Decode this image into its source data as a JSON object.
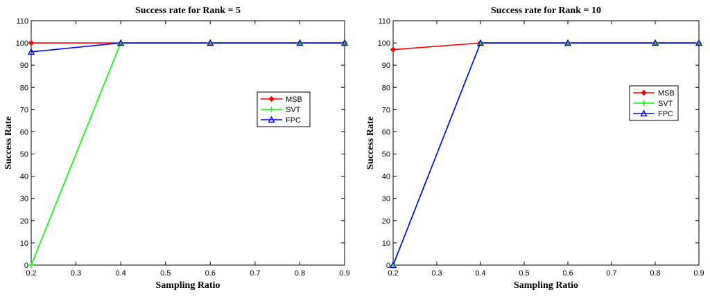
{
  "chart_data": [
    {
      "type": "line",
      "title": "Success rate for Rank = 5",
      "xlabel": "Sampling Ratio",
      "ylabel": "Success Rate",
      "xlim": [
        0.2,
        0.9
      ],
      "ylim": [
        0,
        110
      ],
      "xticks": [
        "0.2",
        "0.3",
        "0.4",
        "0.5",
        "0.6",
        "0.7",
        "0.8",
        "0.9"
      ],
      "yticks": [
        "0",
        "10",
        "20",
        "30",
        "40",
        "50",
        "60",
        "70",
        "80",
        "90",
        "100",
        "110"
      ],
      "legend_position": "right-center",
      "series": [
        {
          "name": "MSB",
          "color": "#ff0000",
          "marker": "diamond",
          "x": [
            0.2,
            0.4,
            0.6,
            0.8,
            0.9
          ],
          "y": [
            100,
            100,
            100,
            100,
            100
          ]
        },
        {
          "name": "SVT",
          "color": "#00ff00",
          "marker": "plus",
          "x": [
            0.2,
            0.4,
            0.6,
            0.8,
            0.9
          ],
          "y": [
            0,
            100,
            100,
            100,
            100
          ]
        },
        {
          "name": "FPC",
          "color": "#0000ff",
          "marker": "triangle",
          "x": [
            0.2,
            0.4,
            0.6,
            0.8,
            0.9
          ],
          "y": [
            96,
            100,
            100,
            100,
            100
          ]
        }
      ]
    },
    {
      "type": "line",
      "title": "Success rate for Rank = 10",
      "xlabel": "Sampling Ratio",
      "ylabel": "Success Rate",
      "xlim": [
        0.2,
        0.9
      ],
      "ylim": [
        0,
        110
      ],
      "xticks": [
        "0.2",
        "0.3",
        "0.4",
        "0.5",
        "0.6",
        "0.7",
        "0.8",
        "0.9"
      ],
      "yticks": [
        "0",
        "10",
        "20",
        "30",
        "40",
        "50",
        "60",
        "70",
        "80",
        "90",
        "100",
        "110"
      ],
      "legend_position": "right-center",
      "series": [
        {
          "name": "MSB",
          "color": "#ff0000",
          "marker": "diamond",
          "x": [
            0.2,
            0.4,
            0.6,
            0.8,
            0.9
          ],
          "y": [
            97,
            100,
            100,
            100,
            100
          ]
        },
        {
          "name": "SVT",
          "color": "#00ff00",
          "marker": "plus",
          "x": [
            0.2,
            0.4,
            0.6,
            0.8,
            0.9
          ],
          "y": [
            0,
            100,
            100,
            100,
            100
          ]
        },
        {
          "name": "FPC",
          "color": "#0000ff",
          "marker": "triangle",
          "x": [
            0.2,
            0.4,
            0.6,
            0.8,
            0.9
          ],
          "y": [
            0,
            100,
            100,
            100,
            100
          ]
        }
      ]
    }
  ]
}
